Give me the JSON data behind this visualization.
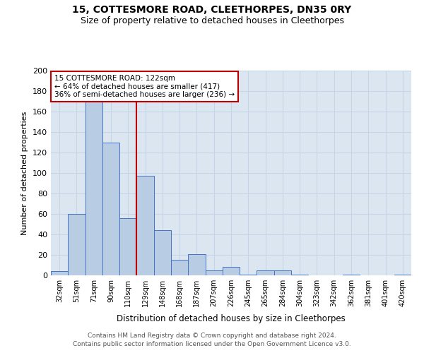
{
  "title_line1": "15, COTTESMORE ROAD, CLEETHORPES, DN35 0RY",
  "title_line2": "Size of property relative to detached houses in Cleethorpes",
  "xlabel": "Distribution of detached houses by size in Cleethorpes",
  "ylabel": "Number of detached properties",
  "footnote1": "Contains HM Land Registry data © Crown copyright and database right 2024.",
  "footnote2": "Contains public sector information licensed under the Open Government Licence v3.0.",
  "categories": [
    "32sqm",
    "51sqm",
    "71sqm",
    "90sqm",
    "110sqm",
    "129sqm",
    "148sqm",
    "168sqm",
    "187sqm",
    "207sqm",
    "226sqm",
    "245sqm",
    "265sqm",
    "284sqm",
    "304sqm",
    "323sqm",
    "342sqm",
    "362sqm",
    "381sqm",
    "401sqm",
    "420sqm"
  ],
  "values": [
    4,
    60,
    170,
    130,
    56,
    97,
    44,
    15,
    21,
    5,
    8,
    1,
    5,
    5,
    1,
    0,
    0,
    1,
    0,
    0,
    1
  ],
  "bar_color": "#b8cce4",
  "bar_edge_color": "#4472c4",
  "background_color": "#dce6f1",
  "grid_color": "#c5d5e8",
  "vline_after_index": 4,
  "vline_color": "#c00000",
  "annotation_title": "15 COTTESMORE ROAD: 122sqm",
  "annotation_line1": "← 64% of detached houses are smaller (417)",
  "annotation_line2": "36% of semi-detached houses are larger (236) →",
  "annotation_box_color": "#c00000",
  "ylim": [
    0,
    200
  ],
  "yticks": [
    0,
    20,
    40,
    60,
    80,
    100,
    120,
    140,
    160,
    180,
    200
  ]
}
